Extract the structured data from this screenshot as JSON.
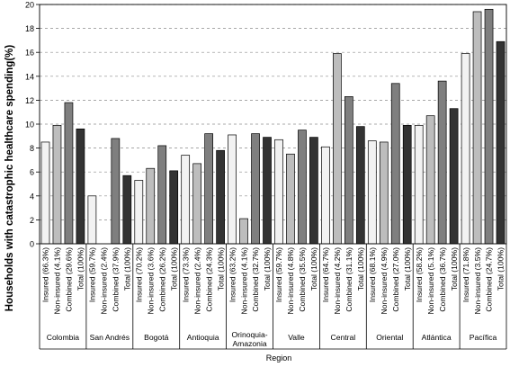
{
  "chart_data": {
    "type": "bar",
    "ylabel": "Households with catastrophic healthcare spending(%)",
    "xlabel": "Region",
    "ylim": [
      0,
      20
    ],
    "yticks": [
      0,
      2,
      4,
      6,
      8,
      10,
      12,
      14,
      16,
      18,
      20
    ],
    "grid": "horizontal dashed",
    "series_colors": {
      "Insured": "#f2f2f2",
      "Non-insured": "#bdbdbd",
      "Combined": "#7f7f7f",
      "Total": "#333333"
    },
    "groups": [
      {
        "region": "Colombia",
        "bars": [
          {
            "series": "Insured",
            "label": "Insured (66.3%)",
            "value": 8.5
          },
          {
            "series": "Non-insured",
            "label": "Non-insured (4.1%)",
            "value": 9.9
          },
          {
            "series": "Combined",
            "label": "Combined (29.6%)",
            "value": 11.8
          },
          {
            "series": "Total",
            "label": "Total (100%)",
            "value": 9.6
          }
        ]
      },
      {
        "region": "San Andrés",
        "bars": [
          {
            "series": "Insured",
            "label": "Insured (59.7%)",
            "value": 4.0
          },
          {
            "series": "Non-insured",
            "label": "Non-insured (2.4%)",
            "value": 0
          },
          {
            "series": "Combined",
            "label": "Combined (37.9%)",
            "value": 8.8
          },
          {
            "series": "Total",
            "label": "Total (100%)",
            "value": 5.7
          }
        ]
      },
      {
        "region": "Bogotá",
        "bars": [
          {
            "series": "Insured",
            "label": "Insured (70.2%)",
            "value": 5.3
          },
          {
            "series": "Non-insured",
            "label": "Non-insured (3.6%)",
            "value": 6.3
          },
          {
            "series": "Combined",
            "label": "Combined (26.2%)",
            "value": 8.2
          },
          {
            "series": "Total",
            "label": "Total (100%)",
            "value": 6.1
          }
        ]
      },
      {
        "region": "Antioquia",
        "bars": [
          {
            "series": "Insured",
            "label": "Insured (73.3%)",
            "value": 7.4
          },
          {
            "series": "Non-insured",
            "label": "Non-insured (2.4%)",
            "value": 6.7
          },
          {
            "series": "Combined",
            "label": "Combined (24.3%)",
            "value": 9.2
          },
          {
            "series": "Total",
            "label": "Total (100%)",
            "value": 7.8
          }
        ]
      },
      {
        "region": "Orinoquia-Amazonia",
        "region_lines": [
          "Orinoquia-",
          "Amazonia"
        ],
        "bars": [
          {
            "series": "Insured",
            "label": "Insured (63.2%)",
            "value": 9.1
          },
          {
            "series": "Non-insured",
            "label": "Non-insured (4.1%)",
            "value": 2.1
          },
          {
            "series": "Combined",
            "label": "Combined (32.7%)",
            "value": 9.2
          },
          {
            "series": "Total",
            "label": "Total (100%)",
            "value": 8.9
          }
        ]
      },
      {
        "region": "Valle",
        "bars": [
          {
            "series": "Insured",
            "label": "Insured (59.7%)",
            "value": 8.7
          },
          {
            "series": "Non-insured",
            "label": "Non-insured (4.8%)",
            "value": 7.5
          },
          {
            "series": "Combined",
            "label": "Combined (35.5%)",
            "value": 9.5
          },
          {
            "series": "Total",
            "label": "Total (100%)",
            "value": 8.9
          }
        ]
      },
      {
        "region": "Central",
        "bars": [
          {
            "series": "Insured",
            "label": "Insured (64.7%)",
            "value": 8.1
          },
          {
            "series": "Non-insured",
            "label": "Non-insured (4.2%)",
            "value": 15.9
          },
          {
            "series": "Combined",
            "label": "Combined (31.1%)",
            "value": 12.3
          },
          {
            "series": "Total",
            "label": "Total (100%)",
            "value": 9.8
          }
        ]
      },
      {
        "region": "Oriental",
        "bars": [
          {
            "series": "Insured",
            "label": "Insured (68.1%)",
            "value": 8.6
          },
          {
            "series": "Non-insured",
            "label": "Non-insured (4.9%)",
            "value": 8.5
          },
          {
            "series": "Combined",
            "label": "Combined (27.0%)",
            "value": 13.4
          },
          {
            "series": "Total",
            "label": "Total (100%)",
            "value": 9.9
          }
        ]
      },
      {
        "region": "Atlántica",
        "bars": [
          {
            "series": "Insured",
            "label": "Insured (58.2%)",
            "value": 9.9
          },
          {
            "series": "Non-insured",
            "label": "Non-insured (5.1%)",
            "value": 10.7
          },
          {
            "series": "Combined",
            "label": "Combined (36.7%)",
            "value": 13.6
          },
          {
            "series": "Total",
            "label": "Total (100%)",
            "value": 11.3
          }
        ]
      },
      {
        "region": "Pacífica",
        "bars": [
          {
            "series": "Insured",
            "label": "Insured (71.8%)",
            "value": 15.9
          },
          {
            "series": "Non-insured",
            "label": "Non-insured (3.5%)",
            "value": 19.4
          },
          {
            "series": "Combined",
            "label": "Combined (24.7%)",
            "value": 19.6
          },
          {
            "series": "Total",
            "label": "Total (100%)",
            "value": 16.9
          }
        ]
      }
    ]
  }
}
